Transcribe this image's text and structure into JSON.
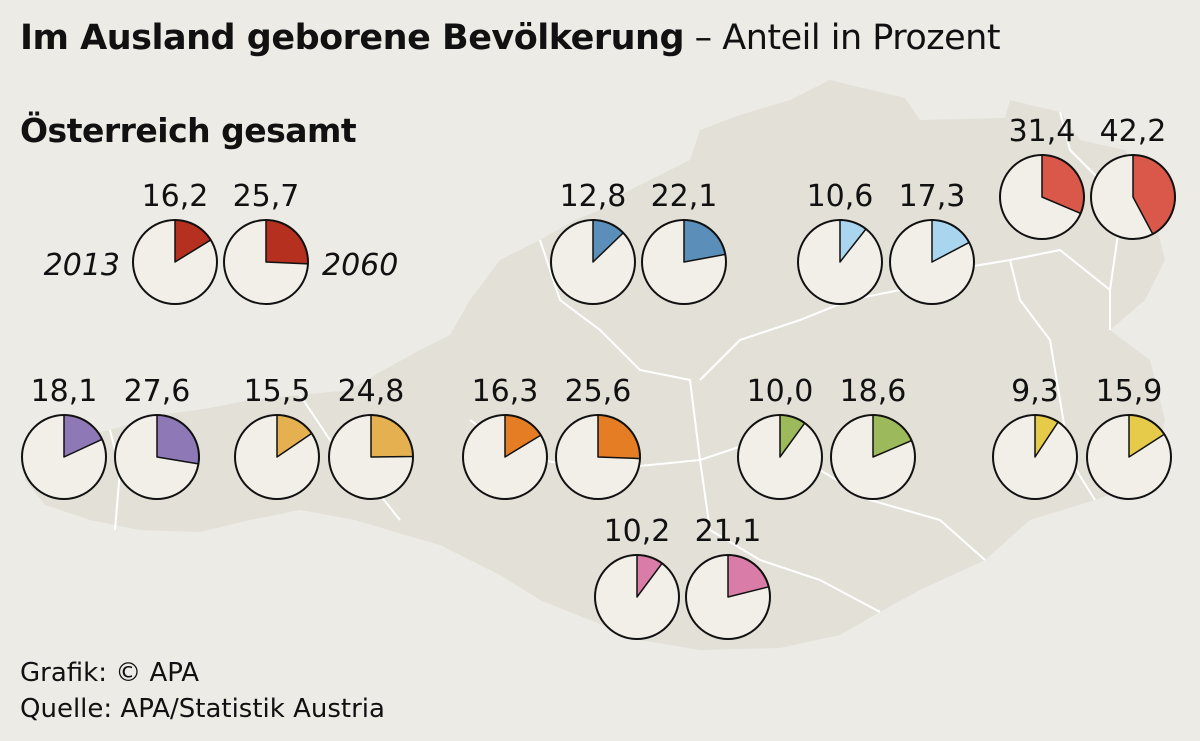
{
  "header": {
    "title_bold": "Im Ausland geborene Bevölkerung",
    "title_rest": " – Anteil in Prozent"
  },
  "section_heading": "Österreich gesamt",
  "year_labels": {
    "left": "2013",
    "right": "2060"
  },
  "credits": {
    "graphic": "Grafik: © APA",
    "source": "Quelle: APA/Statistik Austria"
  },
  "colors": {
    "background": "#ecebe6",
    "map_fill": "#e2e0d7",
    "map_border": "#ffffff",
    "pie_base": "#f1efe7",
    "pie_outline": "#111111"
  },
  "chart_data": {
    "type": "pie",
    "units": "Prozent",
    "groups": [
      {
        "value_2013": 16.2,
        "value_2060": 25.7,
        "label_2013": "16,2",
        "label_2060": "25,7",
        "color": "#b5301f"
      },
      {
        "value_2013": 12.8,
        "value_2060": 22.1,
        "label_2013": "12,8",
        "label_2060": "22,1",
        "color": "#5b8fba"
      },
      {
        "value_2013": 10.6,
        "value_2060": 17.3,
        "label_2013": "10,6",
        "label_2060": "17,3",
        "color": "#a9d5ef"
      },
      {
        "value_2013": 31.4,
        "value_2060": 42.2,
        "label_2013": "31,4",
        "label_2060": "42,2",
        "color": "#d9584a"
      },
      {
        "value_2013": 18.1,
        "value_2060": 27.6,
        "label_2013": "18,1",
        "label_2060": "27,6",
        "color": "#8e79b6"
      },
      {
        "value_2013": 15.5,
        "value_2060": 24.8,
        "label_2013": "15,5",
        "label_2060": "24,8",
        "color": "#e5b04f"
      },
      {
        "value_2013": 16.3,
        "value_2060": 25.6,
        "label_2013": "16,3",
        "label_2060": "25,6",
        "color": "#e57d24"
      },
      {
        "value_2013": 10.0,
        "value_2060": 18.6,
        "label_2013": "10,0",
        "label_2060": "18,6",
        "color": "#9cba5c"
      },
      {
        "value_2013": 9.3,
        "value_2060": 15.9,
        "label_2013": "9,3",
        "label_2060": "15,9",
        "color": "#e6ca4a"
      },
      {
        "value_2013": 10.2,
        "value_2060": 21.1,
        "label_2013": "10,2",
        "label_2060": "21,1",
        "color": "#d97da8"
      }
    ]
  }
}
